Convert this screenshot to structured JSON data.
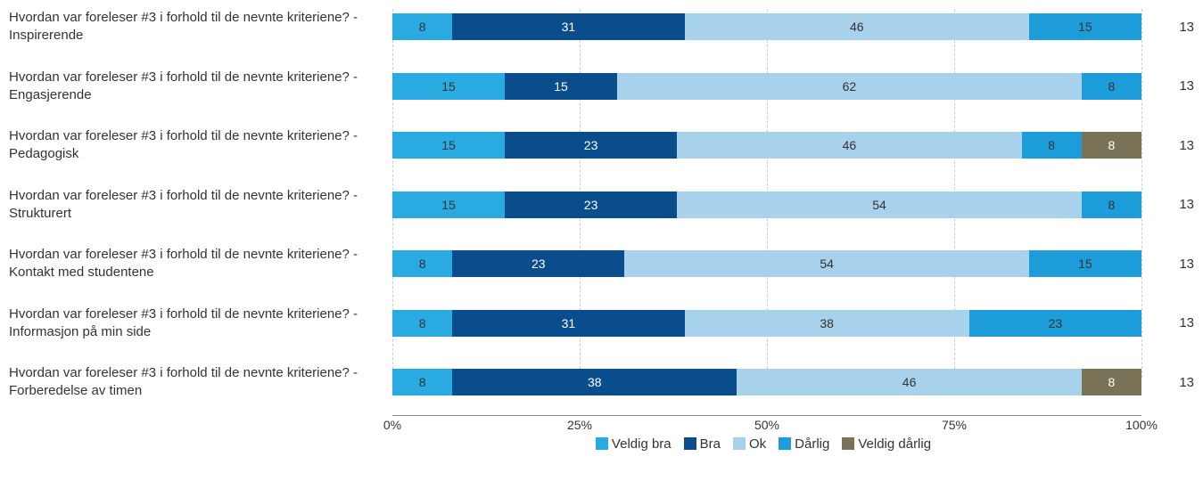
{
  "chart": {
    "type": "stacked-bar-horizontal",
    "categories": [
      "Veldig bra",
      "Bra",
      "Ok",
      "Dårlig",
      "Veldig dårlig"
    ],
    "colors": [
      "#29abe2",
      "#0a4d8c",
      "#a8d1eb",
      "#1c9dd9",
      "#7a7256"
    ],
    "text_colors": [
      "#333333",
      "#ffffff",
      "#333333",
      "#333333",
      "#ffffff"
    ],
    "min_label_pct": 5,
    "axis_ticks": [
      0,
      25,
      50,
      75,
      100
    ],
    "axis_suffix": "%",
    "rows": [
      {
        "label": "Hvordan var foreleser #3 i forhold til de nevnte kriteriene? - Inspirerende",
        "values": [
          8,
          31,
          46,
          15,
          0
        ],
        "n": 13
      },
      {
        "label": "Hvordan var foreleser #3 i forhold til de nevnte kriteriene? - Engasjerende",
        "values": [
          15,
          15,
          62,
          8,
          0
        ],
        "n": 13
      },
      {
        "label": "Hvordan var foreleser #3 i forhold til de nevnte kriteriene? - Pedagogisk",
        "values": [
          15,
          23,
          46,
          8,
          8
        ],
        "n": 13
      },
      {
        "label": "Hvordan var foreleser #3 i forhold til de nevnte kriteriene? - Strukturert",
        "values": [
          15,
          23,
          54,
          8,
          0
        ],
        "n": 13
      },
      {
        "label": "Hvordan var foreleser #3 i forhold til de nevnte kriteriene? - Kontakt med studentene",
        "values": [
          8,
          23,
          54,
          15,
          0
        ],
        "n": 13
      },
      {
        "label": "Hvordan var foreleser #3 i forhold til de nevnte kriteriene? - Informasjon på min side",
        "values": [
          8,
          31,
          38,
          23,
          0
        ],
        "n": 13
      },
      {
        "label": "Hvordan var foreleser #3 i forhold til de nevnte kriteriene? - Forberedelse av timen",
        "values": [
          8,
          38,
          46,
          0,
          8
        ],
        "n": 13
      }
    ]
  }
}
